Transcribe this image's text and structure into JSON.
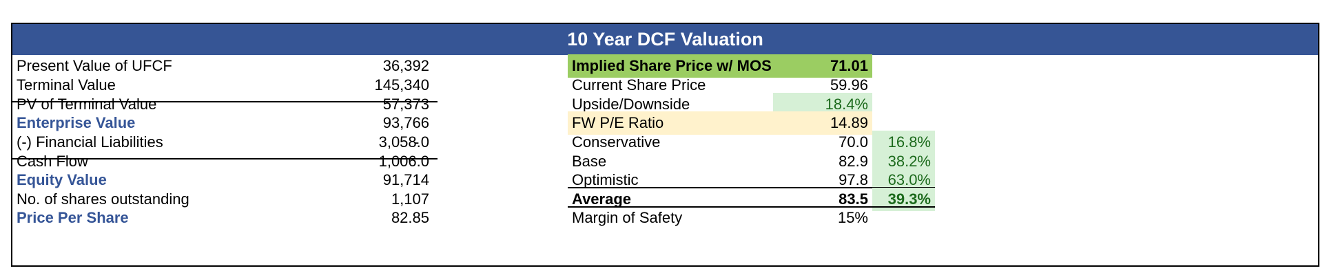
{
  "title": "10 Year DCF Valuation",
  "left": [
    {
      "label": "Present Value of UFCF",
      "value": "36,392"
    },
    {
      "label": "Terminal Value",
      "value": "145,340"
    },
    {
      "label": "PV of Terminal Value",
      "value": "57,373"
    },
    {
      "label": "Enterprise Value",
      "value": "93,766"
    },
    {
      "label": "(-) Financial Liabilities",
      "sign": "-",
      "value": "3,058.0"
    },
    {
      "label": "Cash Flow",
      "value": "1,006.0"
    },
    {
      "label": "Equity Value",
      "value": "91,714"
    },
    {
      "label": "No. of shares outstanding",
      "value": "1,107"
    },
    {
      "label": "Price Per Share",
      "value": "82.85"
    }
  ],
  "right": [
    {
      "label": "Implied Share Price w/ MOS",
      "value": "71.01",
      "pct": ""
    },
    {
      "label": "Current Share Price",
      "value": "59.96",
      "pct": ""
    },
    {
      "label": "Upside/Downside",
      "value": "18.4%",
      "pct": ""
    },
    {
      "label": "FW P/E Ratio",
      "value": "14.89",
      "pct": ""
    },
    {
      "label": "Conservative",
      "value": "70.0",
      "pct": "16.8%"
    },
    {
      "label": "Base",
      "value": "82.9",
      "pct": "38.2%"
    },
    {
      "label": "Optimistic",
      "value": "97.8",
      "pct": "63.0%"
    },
    {
      "label": "Average",
      "value": "83.5",
      "pct": "39.3%"
    },
    {
      "label": "Margin of Safety",
      "value": "15%",
      "pct": ""
    }
  ],
  "colors": {
    "header_bg": "#365595",
    "implied_bg": "#9bcd62",
    "upside_bg": "#d6f0d6",
    "pe_bg": "#fff2cc",
    "pct_bg": "#d6f0d6",
    "label_blue": "#355597"
  }
}
